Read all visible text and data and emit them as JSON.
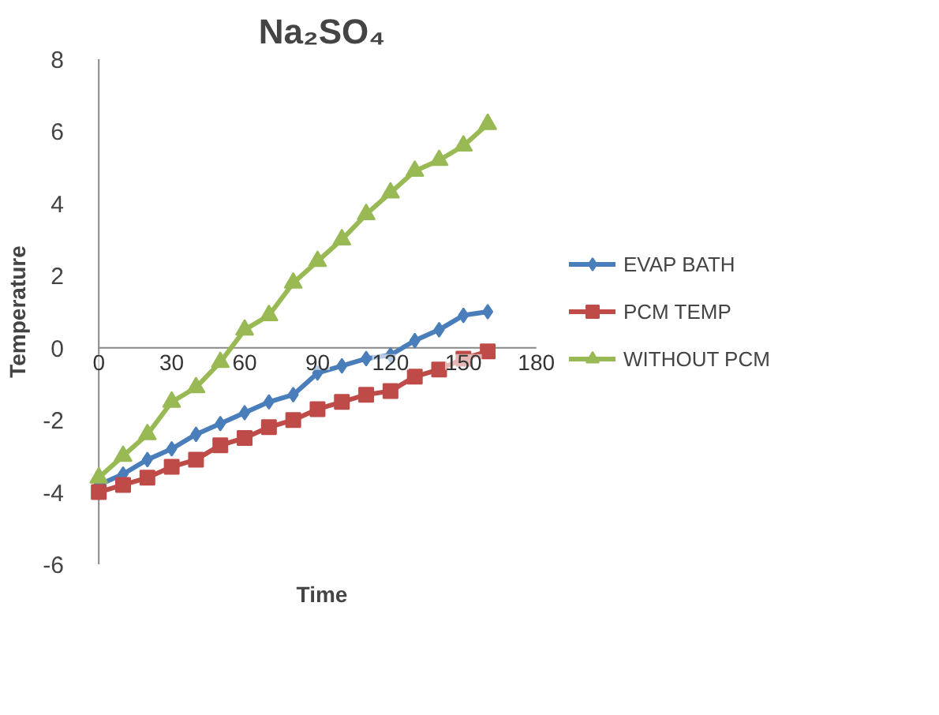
{
  "chart_data": {
    "type": "line",
    "title": "Na₂SO₄",
    "xlabel": "Time",
    "ylabel": "Temperature",
    "x": [
      0,
      10,
      20,
      30,
      40,
      50,
      60,
      70,
      80,
      90,
      100,
      110,
      120,
      130,
      140,
      150,
      160
    ],
    "series": [
      {
        "name": "EVAP BATH",
        "color": "#4a7ebb",
        "marker": "diamond",
        "values": [
          -3.8,
          -3.5,
          -3.1,
          -2.8,
          -2.4,
          -2.1,
          -1.8,
          -1.5,
          -1.3,
          -0.7,
          -0.5,
          -0.3,
          -0.2,
          0.2,
          0.5,
          0.9,
          1.0
        ]
      },
      {
        "name": "PCM TEMP",
        "color": "#be4b48",
        "marker": "square",
        "values": [
          -4.0,
          -3.8,
          -3.6,
          -3.3,
          -3.1,
          -2.7,
          -2.5,
          -2.2,
          -2.0,
          -1.7,
          -1.5,
          -1.3,
          -1.2,
          -0.8,
          -0.6,
          -0.3,
          -0.1
        ]
      },
      {
        "name": "WITHOUT PCM",
        "color": "#98b954",
        "marker": "triangle",
        "values": [
          -3.6,
          -3.0,
          -2.4,
          -1.5,
          -1.1,
          -0.4,
          0.5,
          0.9,
          1.8,
          2.4,
          3.0,
          3.7,
          4.3,
          4.9,
          5.2,
          5.6,
          6.2
        ]
      }
    ],
    "xlim": [
      0,
      180
    ],
    "xticks": [
      0,
      30,
      60,
      90,
      120,
      150,
      180
    ],
    "ylim": [
      -6,
      8
    ],
    "yticks": [
      -6,
      -4,
      -2,
      0,
      2,
      4,
      6,
      8
    ],
    "grid": false,
    "legend": "right",
    "line_style": "solid"
  }
}
